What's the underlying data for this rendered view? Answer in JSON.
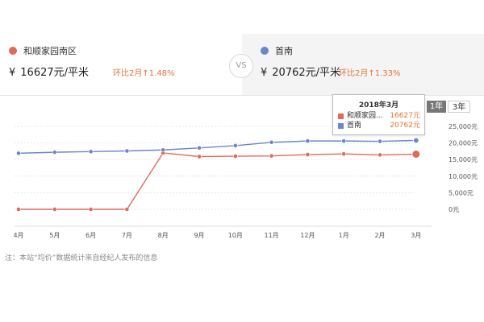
{
  "compare": {
    "left": {
      "name": "和顺家园南区",
      "currency": "¥",
      "price": "16627元/平米",
      "change": "环比2月↑1.48%",
      "color": "#e06a5a"
    },
    "vs_label": "VS",
    "right": {
      "name": "首南",
      "currency": "¥",
      "price": "20762元/平米",
      "change": "环比2月↑1.33%",
      "color": "#6b86c9"
    }
  },
  "range_tabs": [
    {
      "label": "1年",
      "active": true
    },
    {
      "label": "3年",
      "active": false
    }
  ],
  "tooltip": {
    "title": "2018年3月",
    "rows": [
      {
        "name": "和顺家园...",
        "value": "16627元",
        "color": "#e06a5a"
      },
      {
        "name": "首南",
        "value": "20762元",
        "color": "#6b86c9"
      }
    ]
  },
  "chart_data": {
    "type": "line",
    "title": "",
    "xlabel": "",
    "ylabel": "",
    "categories": [
      "4月",
      "5月",
      "6月",
      "7月",
      "8月",
      "9月",
      "10月",
      "11月",
      "12月",
      "1月",
      "2月",
      "3月"
    ],
    "series": [
      {
        "name": "和顺家园南区",
        "color": "#e06a5a",
        "values": [
          0,
          0,
          0,
          0,
          17000,
          15900,
          16000,
          16100,
          16500,
          16700,
          16400,
          16627
        ]
      },
      {
        "name": "首南",
        "color": "#6b86c9",
        "values": [
          16900,
          17200,
          17400,
          17600,
          17900,
          18500,
          19200,
          20200,
          20600,
          20600,
          20500,
          20762
        ]
      }
    ],
    "yticks": [
      0,
      5000,
      10000,
      15000,
      20000,
      25000
    ],
    "ytick_labels": [
      "0元",
      "5,000元",
      "10,000元",
      "15,000元",
      "20,000元",
      "25,000元"
    ],
    "ylim": [
      0,
      25000
    ],
    "y_axis_position": "right",
    "grid": true,
    "highlight_index": 11
  },
  "note": "注：本站“均价”数据统计来自经纪人发布的信息"
}
